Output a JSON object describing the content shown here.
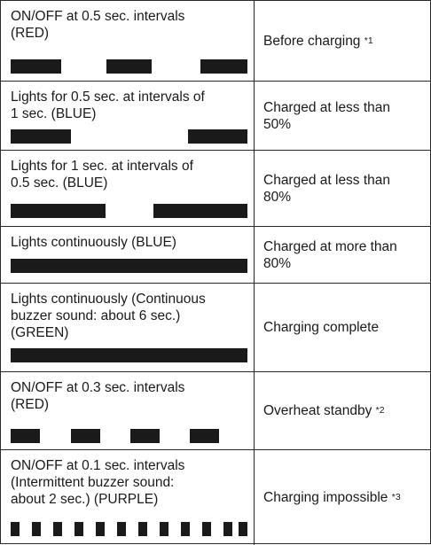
{
  "rows": [
    {
      "description": "ON/OFF at 0.5 sec. intervals\n(RED)",
      "status": "Before charging",
      "note": "*1"
    },
    {
      "description": "Lights for 0.5 sec. at intervals of\n1 sec. (BLUE)",
      "status": "Charged at less than\n50%",
      "note": ""
    },
    {
      "description": "Lights for 1 sec. at intervals of\n0.5 sec. (BLUE)",
      "status": "Charged at less than\n80%",
      "note": ""
    },
    {
      "description": "Lights continuously (BLUE)",
      "status": "Charged at more than\n80%",
      "note": ""
    },
    {
      "description": "Lights continuously (Continuous\nbuzzer sound: about 6 sec.)\n(GREEN)",
      "status": "Charging complete",
      "note": ""
    },
    {
      "description": "ON/OFF at 0.3 sec. intervals\n(RED)",
      "status": "Overheat standby",
      "note": "*2"
    },
    {
      "description": "ON/OFF at 0.1 sec. intervals\n(Intermittent buzzer sound:\nabout 2 sec.) (PURPLE)",
      "status": "Charging impossible",
      "note": "*3"
    }
  ]
}
